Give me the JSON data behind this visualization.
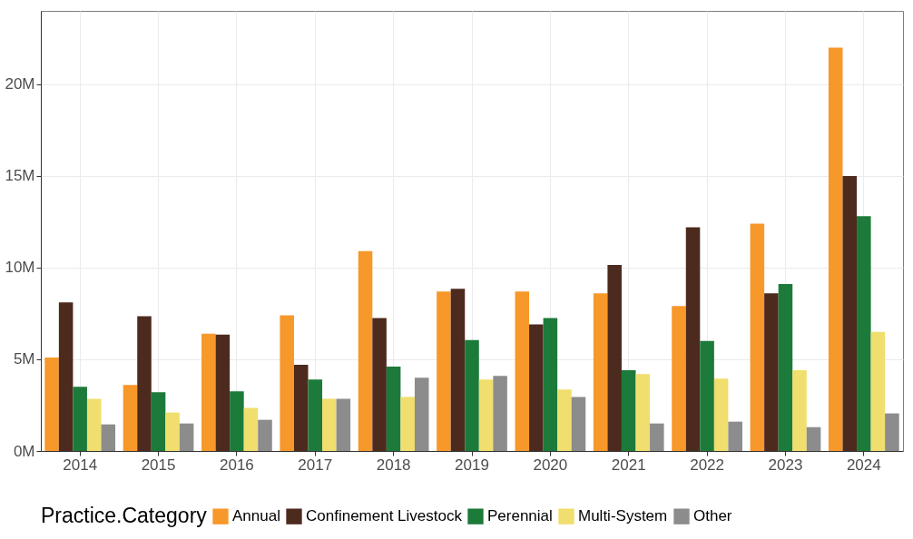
{
  "chart_data": {
    "type": "bar",
    "categories": [
      "2014",
      "2015",
      "2016",
      "2017",
      "2018",
      "2019",
      "2020",
      "2021",
      "2022",
      "2023",
      "2024"
    ],
    "series": [
      {
        "name": "Annual",
        "color": "#f7982a",
        "values": [
          5.1,
          3.6,
          6.4,
          7.4,
          10.9,
          8.7,
          8.7,
          8.6,
          7.9,
          12.4,
          22.0
        ]
      },
      {
        "name": "Confinement Livestock",
        "color": "#4d2a1e",
        "values": [
          8.1,
          7.35,
          6.35,
          4.7,
          7.25,
          8.85,
          6.9,
          10.15,
          12.2,
          8.6,
          15.0
        ]
      },
      {
        "name": "Perennial",
        "color": "#1c7a3a",
        "values": [
          3.5,
          3.2,
          3.25,
          3.9,
          4.6,
          6.05,
          7.25,
          4.4,
          6.0,
          9.1,
          12.8
        ]
      },
      {
        "name": "Multi-System",
        "color": "#f0de6e",
        "values": [
          2.85,
          2.1,
          2.35,
          2.85,
          2.95,
          3.9,
          3.35,
          4.2,
          3.95,
          4.4,
          6.5
        ]
      },
      {
        "name": "Other",
        "color": "#8c8c8c",
        "values": [
          1.45,
          1.5,
          1.7,
          2.85,
          4.0,
          4.1,
          2.95,
          1.5,
          1.6,
          1.3,
          2.05
        ]
      }
    ],
    "ylim": [
      0,
      24
    ],
    "yticks": [
      {
        "value": 0,
        "label": "0M"
      },
      {
        "value": 5,
        "label": "5M"
      },
      {
        "value": 10,
        "label": "10M"
      },
      {
        "value": 15,
        "label": "15M"
      },
      {
        "value": 20,
        "label": "20M"
      }
    ],
    "legend_title": "Practice.Category",
    "legend": "bottom",
    "grid": true
  }
}
